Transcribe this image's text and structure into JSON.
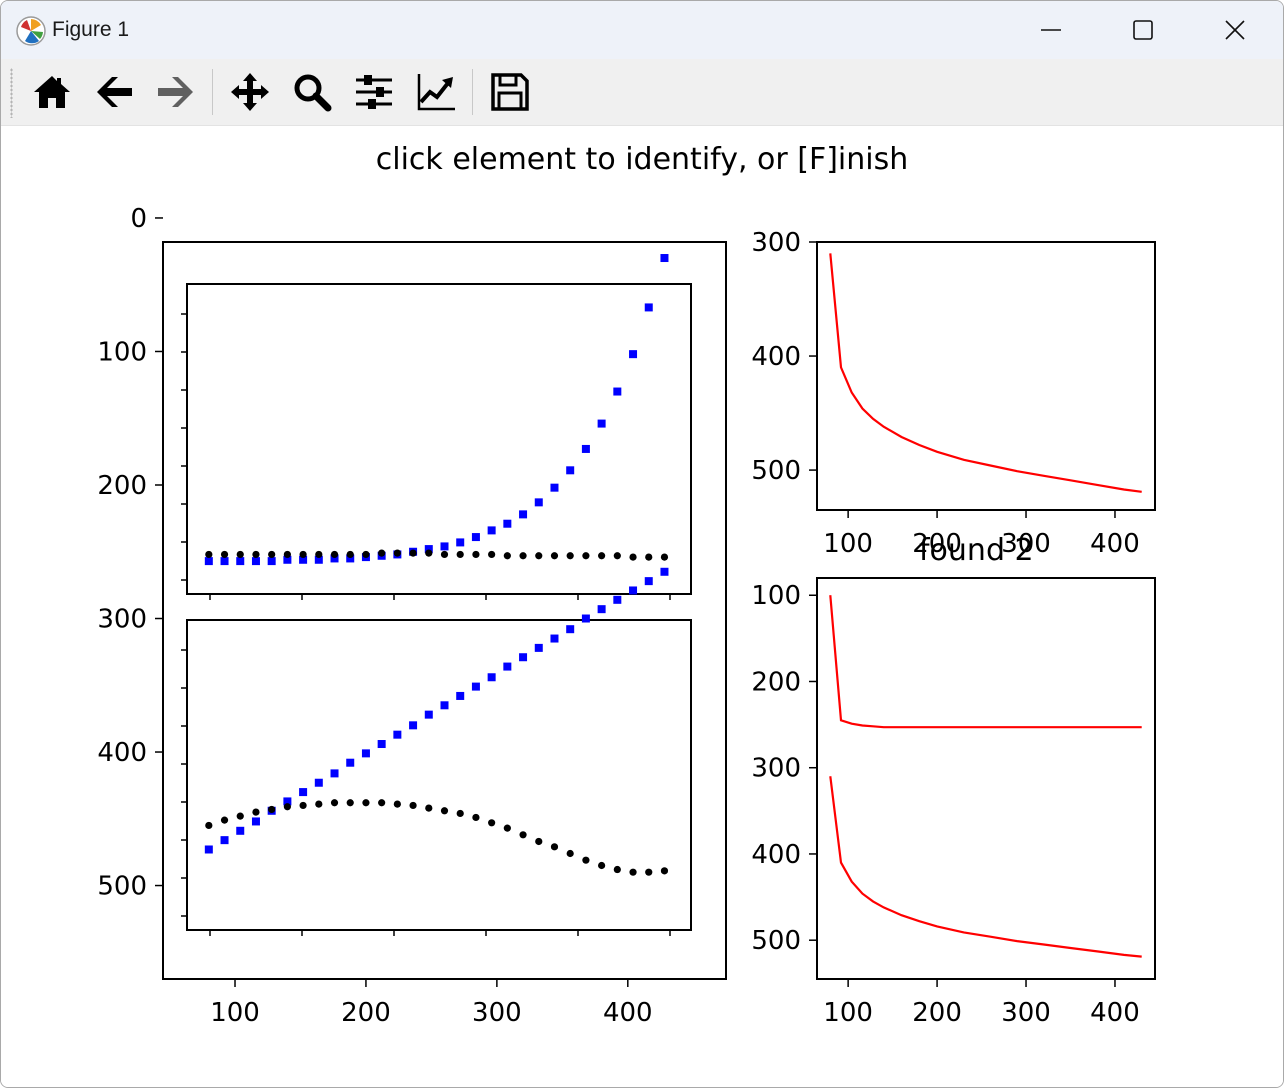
{
  "window": {
    "title": "Figure 1",
    "app_icon": "matplotlib-logo-icon",
    "controls": [
      "minimize-icon",
      "maximize-icon",
      "close-icon"
    ]
  },
  "toolbar": {
    "buttons": [
      {
        "name": "home-button",
        "icon": "home-icon"
      },
      {
        "name": "back-button",
        "icon": "arrow-left-icon"
      },
      {
        "name": "forward-button",
        "icon": "arrow-right-icon"
      },
      {
        "name": "pan-button",
        "icon": "move-arrows-icon"
      },
      {
        "name": "zoom-button",
        "icon": "magnifier-icon"
      },
      {
        "name": "subplots-button",
        "icon": "sliders-icon"
      },
      {
        "name": "customize-button",
        "icon": "line-chart-icon"
      },
      {
        "name": "save-button",
        "icon": "floppy-disk-icon"
      }
    ]
  },
  "figure": {
    "title": "click element to identify, or [F]inish",
    "found_label": "found 2"
  },
  "colors": {
    "blue_markers": "#0000ff",
    "black_markers": "#000000",
    "red_lines": "#ff0000"
  },
  "chart_data": [
    {
      "type": "scatter",
      "panel": "left-outer-axes",
      "xlim": [
        45,
        475
      ],
      "ylim": [
        570,
        18
      ],
      "y_inverted": true,
      "x_ticks": [
        "100",
        "200",
        "300",
        "400"
      ],
      "y_ticks": [
        "0",
        "100",
        "200",
        "300",
        "400",
        "500"
      ],
      "x_tick_values": [
        100,
        200,
        300,
        400
      ],
      "y_tick_values": [
        0,
        100,
        200,
        300,
        400,
        500
      ],
      "series": [
        {
          "marker": "square",
          "color": "#0000ff",
          "x": [
            80,
            92,
            104,
            116,
            128,
            140,
            152,
            164,
            176,
            188,
            200,
            212,
            224,
            236,
            248,
            260,
            272,
            284,
            296,
            308,
            320,
            332,
            344,
            356,
            368,
            380,
            392,
            404,
            416,
            428
          ],
          "y": [
            257,
            257,
            257,
            257,
            257,
            256,
            256,
            256,
            255,
            255,
            254,
            253,
            252,
            250,
            248,
            246,
            243,
            239,
            234,
            229,
            222,
            213,
            202,
            189,
            173,
            154,
            130,
            102,
            67,
            30
          ]
        },
        {
          "marker": "dot",
          "color": "#000000",
          "x": [
            80,
            92,
            104,
            116,
            128,
            140,
            152,
            164,
            176,
            188,
            200,
            212,
            224,
            236,
            248,
            260,
            272,
            284,
            296,
            308,
            320,
            332,
            344,
            356,
            368,
            380,
            392,
            404,
            416,
            428
          ],
          "y": [
            252,
            252,
            252,
            252,
            252,
            252,
            252,
            252,
            252,
            252,
            252,
            251,
            251,
            251,
            251,
            252,
            252,
            252,
            252,
            253,
            253,
            253,
            253,
            253,
            253,
            253,
            253,
            254,
            254,
            254
          ]
        },
        {
          "marker": "square",
          "color": "#0000ff",
          "x": [
            80,
            92,
            104,
            116,
            128,
            140,
            152,
            164,
            176,
            188,
            200,
            212,
            224,
            236,
            248,
            260,
            272,
            284,
            296,
            308,
            320,
            332,
            344,
            356,
            368,
            380,
            392,
            404,
            416,
            428
          ],
          "y": [
            473,
            466,
            459,
            452,
            444,
            437,
            430,
            423,
            416,
            408,
            401,
            394,
            387,
            380,
            372,
            365,
            358,
            351,
            344,
            336,
            329,
            322,
            315,
            308,
            300,
            293,
            286,
            279,
            272,
            265
          ]
        },
        {
          "marker": "dot",
          "color": "#000000",
          "x": [
            80,
            92,
            104,
            116,
            128,
            140,
            152,
            164,
            176,
            188,
            200,
            212,
            224,
            236,
            248,
            260,
            272,
            284,
            296,
            308,
            320,
            332,
            344,
            356,
            368,
            380,
            392,
            404,
            416,
            428
          ],
          "y": [
            455,
            451,
            448,
            445,
            443,
            441,
            440,
            439,
            438,
            438,
            438,
            438,
            439,
            440,
            442,
            444,
            446,
            449,
            453,
            457,
            462,
            467,
            471,
            476,
            481,
            485,
            488,
            490,
            490,
            489
          ]
        }
      ]
    },
    {
      "type": "line",
      "panel": "right-top-axes",
      "xlim": [
        65,
        445
      ],
      "ylim": [
        535,
        300
      ],
      "y_inverted": true,
      "x_ticks": [
        "100",
        "200",
        "300",
        "400"
      ],
      "y_ticks": [
        "300",
        "400",
        "500"
      ],
      "x_tick_values": [
        100,
        200,
        300,
        400
      ],
      "y_tick_values": [
        300,
        400,
        500
      ],
      "series": [
        {
          "color": "#ff0000",
          "x": [
            80,
            92,
            104,
            116,
            128,
            140,
            160,
            180,
            200,
            230,
            260,
            290,
            320,
            350,
            380,
            410,
            430
          ],
          "y": [
            310,
            410,
            432,
            446,
            455,
            462,
            471,
            478,
            484,
            491,
            496,
            501,
            505,
            509,
            513,
            517,
            519
          ]
        }
      ]
    },
    {
      "type": "line",
      "panel": "right-bottom-axes",
      "xlim": [
        65,
        445
      ],
      "ylim": [
        545,
        80
      ],
      "y_inverted": true,
      "x_ticks": [
        "100",
        "200",
        "300",
        "400"
      ],
      "y_ticks": [
        "100",
        "200",
        "300",
        "400",
        "500"
      ],
      "x_tick_values": [
        100,
        200,
        300,
        400
      ],
      "y_tick_values": [
        100,
        200,
        300,
        400,
        500
      ],
      "series": [
        {
          "color": "#ff0000",
          "x": [
            80,
            92,
            104,
            116,
            128,
            140,
            160,
            180,
            200,
            230,
            260,
            290,
            320,
            350,
            380,
            410,
            430
          ],
          "y": [
            100,
            245,
            249,
            251,
            252,
            253,
            253,
            253,
            253,
            253,
            253,
            253,
            253,
            253,
            253,
            253,
            253
          ]
        },
        {
          "color": "#ff0000",
          "x": [
            80,
            92,
            104,
            116,
            128,
            140,
            160,
            180,
            200,
            230,
            260,
            290,
            320,
            350,
            380,
            410,
            430
          ],
          "y": [
            310,
            410,
            432,
            446,
            455,
            462,
            471,
            478,
            484,
            491,
            496,
            501,
            505,
            509,
            513,
            517,
            519
          ]
        }
      ]
    }
  ]
}
